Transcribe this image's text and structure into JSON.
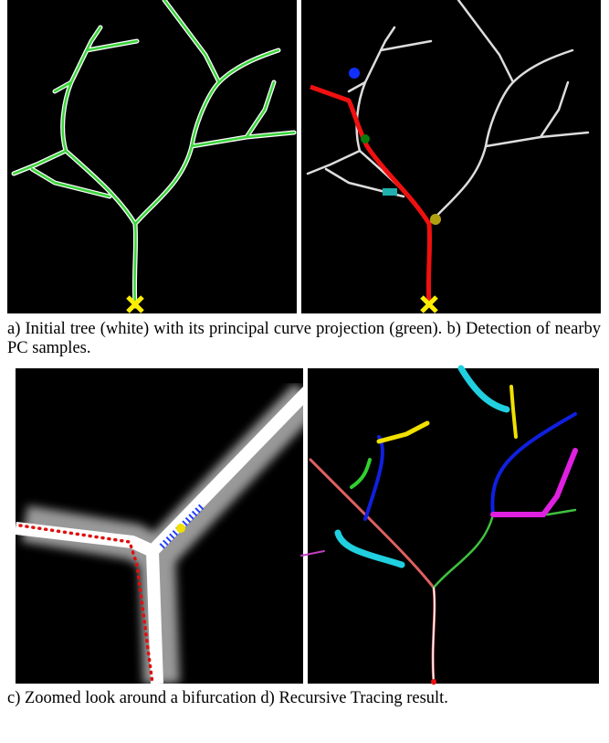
{
  "figure": {
    "captions": [
      "a) Initial tree (white) with its principal curve projection (green). b) Detection of nearby PC samples.",
      "c) Zoomed look around a bifurcation d) Recursive Tracing result."
    ]
  }
}
